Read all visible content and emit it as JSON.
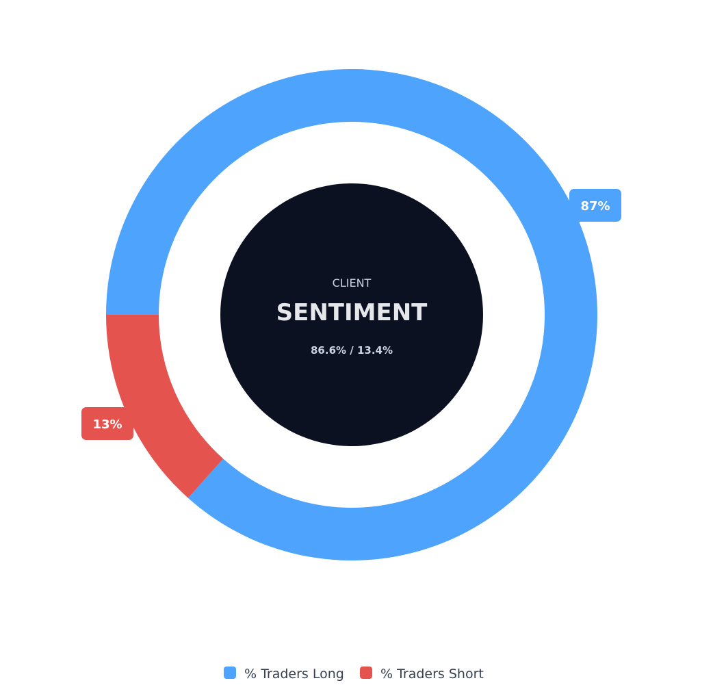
{
  "chart_data": {
    "type": "pie",
    "variant": "donut",
    "categories": [
      "% Traders Long",
      "% Traders Short"
    ],
    "values": [
      86.6,
      13.4
    ],
    "data_labels": [
      "87%",
      "13%"
    ],
    "colors": [
      "#4ea3fc",
      "#e5534f"
    ],
    "center": {
      "line1": "CLIENT",
      "line2": "SENTIMENT",
      "line3": "86.6% / 13.4%"
    },
    "legend": {
      "placement": "bottom",
      "items": [
        "% Traders Long",
        "% Traders Short"
      ]
    }
  }
}
